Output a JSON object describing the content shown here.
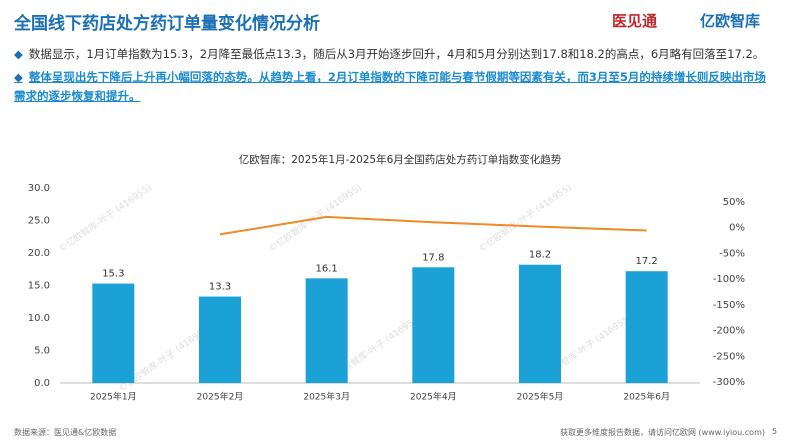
{
  "header": {
    "title": "全国线下药店处方药订单量变化情况分析",
    "logo_left": "医见通",
    "logo_right": "亿欧智库"
  },
  "bullets": [
    "数据显示，1月订单指数为15.3，2月降至最低点13.3，随后从3月开始逐步回升，4月和5月分别达到17.8和18.2的高点，6月略有回落至17.2。",
    "整体呈现出先下降后上升再小幅回落的态势。从趋势上看，2月订单指数的下降可能与春节假期等因素有关，而3月至5月的持续增长则反映出市场需求的逐步恢复和提升。"
  ],
  "watermark": "©亿欧智库-叶子 (416955)",
  "chart_data": {
    "type": "bar",
    "title": "亿欧智库：2025年1月-2025年6月全国药店处方药订单指数变化趋势",
    "categories": [
      "2025年1月",
      "2025年2月",
      "2025年3月",
      "2025年4月",
      "2025年5月",
      "2025年6月"
    ],
    "series": [
      {
        "type": "bar",
        "color": "#1ba1d6",
        "values": [
          15.3,
          13.3,
          16.1,
          17.8,
          18.2,
          17.2
        ]
      },
      {
        "type": "line",
        "axis": "y2",
        "color": "#f08a24",
        "values": [
          null,
          -13,
          21,
          10.6,
          2.2,
          -5.5
        ]
      }
    ],
    "ylim": [
      0,
      30
    ],
    "yticks": [
      {
        "value": 0,
        "label": "0.0"
      },
      {
        "value": 5,
        "label": "5.0"
      },
      {
        "value": 10,
        "label": "10.0"
      },
      {
        "value": 15,
        "label": "15.0"
      },
      {
        "value": 20,
        "label": "20.0"
      },
      {
        "value": 25,
        "label": "25.0"
      },
      {
        "value": 30,
        "label": "30.0"
      }
    ],
    "y2lim": [
      -300,
      50
    ],
    "y2ticks": [
      {
        "value": 50,
        "label": "50%"
      },
      {
        "value": 0,
        "label": "0%"
      },
      {
        "value": -50,
        "label": "-50%"
      },
      {
        "value": -100,
        "label": "-100%"
      },
      {
        "value": -150,
        "label": "-150%"
      },
      {
        "value": -200,
        "label": "-200%"
      },
      {
        "value": -250,
        "label": "-250%"
      },
      {
        "value": -300,
        "label": "-300%"
      }
    ]
  },
  "footer": {
    "source": "数据来源：医见通&亿欧数据",
    "promo": "获取更多维度报告数据，请访问亿欧网 (www.iyiou.com)",
    "page": "5"
  }
}
